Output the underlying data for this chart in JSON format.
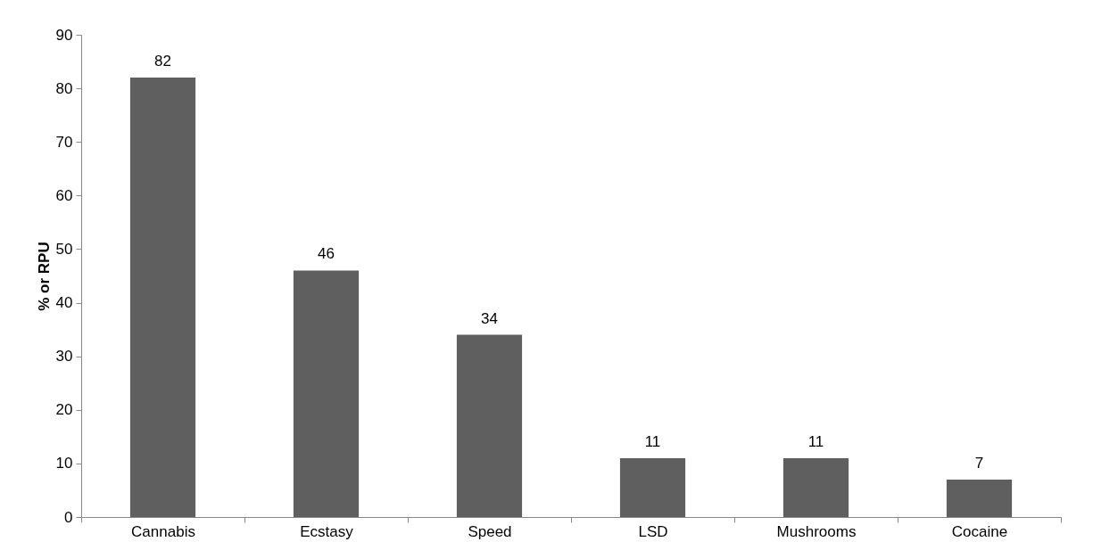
{
  "chart_data": {
    "type": "bar",
    "ylabel": "% or RPU",
    "categories": [
      "Cannabis",
      "Ecstasy",
      "Speed",
      "LSD",
      "Mushrooms",
      "Cocaine"
    ],
    "values": [
      82,
      46,
      34,
      11,
      11,
      7
    ],
    "color": "#5f5f5f",
    "ylim": [
      0,
      90
    ],
    "yticks": [
      0,
      10,
      20,
      30,
      40,
      50,
      60,
      70,
      80,
      90
    ],
    "grid": false,
    "data_labels": true
  }
}
